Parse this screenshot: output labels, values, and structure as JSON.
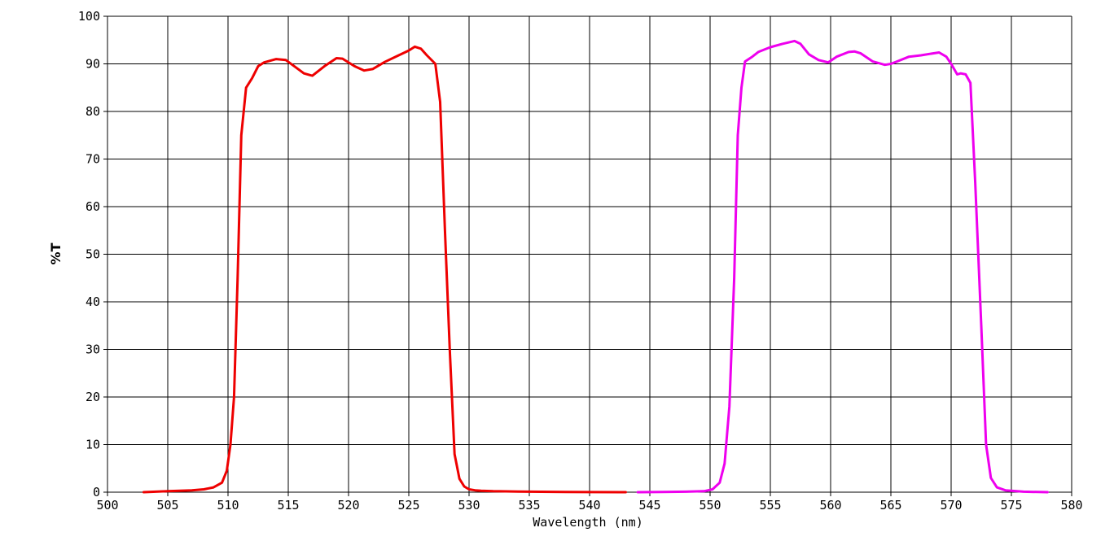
{
  "chart_data": {
    "type": "line",
    "xlabel": "Wavelength (nm)",
    "ylabel": "%T",
    "xlim": [
      500,
      580
    ],
    "ylim": [
      0,
      100
    ],
    "xticks": [
      500,
      505,
      510,
      515,
      520,
      525,
      530,
      535,
      540,
      545,
      550,
      555,
      560,
      565,
      570,
      575,
      580
    ],
    "yticks": [
      0,
      10,
      20,
      30,
      40,
      50,
      60,
      70,
      80,
      90,
      100
    ],
    "grid": true,
    "series": [
      {
        "color": "#ee0000",
        "x": [
          503,
          505,
          507,
          508,
          508.8,
          509.5,
          509.9,
          510.2,
          510.5,
          510.8,
          511.1,
          511.5,
          512,
          512.5,
          513,
          514,
          514.8,
          515.5,
          516.3,
          517,
          518,
          519,
          519.5,
          520.5,
          521.3,
          522,
          523,
          524,
          525,
          525.5,
          526,
          526.5,
          527.2,
          527.6,
          528,
          528.4,
          528.8,
          529.2,
          529.6,
          530,
          530.5,
          531,
          532,
          535,
          538,
          540,
          543
        ],
        "y": [
          0,
          0.2,
          0.4,
          0.6,
          1.0,
          2.0,
          4.5,
          10,
          20,
          45,
          75,
          85,
          87,
          89.5,
          90.3,
          91,
          90.8,
          89.5,
          88,
          87.5,
          89.5,
          91.2,
          91.1,
          89.5,
          88.6,
          88.9,
          90.4,
          91.6,
          92.8,
          93.6,
          93.2,
          91.8,
          90,
          82,
          55,
          30,
          8,
          2.8,
          1.2,
          0.6,
          0.4,
          0.3,
          0.2,
          0.1,
          0.05,
          0.02,
          0
        ]
      },
      {
        "color": "#ee00ee",
        "x": [
          544,
          546,
          548,
          549.5,
          550.2,
          550.8,
          551.2,
          551.6,
          552,
          552.3,
          552.6,
          552.9,
          553.5,
          554,
          555,
          556,
          556.5,
          557,
          557.5,
          558.2,
          559,
          559.8,
          560.5,
          561.5,
          562,
          562.5,
          563.5,
          564.5,
          565,
          565.5,
          566.5,
          567.5,
          568.5,
          569,
          569.6,
          570,
          570.5,
          570.8,
          571.2,
          571.6,
          572,
          572.5,
          572.9,
          573.3,
          573.8,
          574.5,
          576,
          578
        ],
        "y": [
          0,
          0.05,
          0.1,
          0.2,
          0.6,
          2,
          6,
          18,
          45,
          75,
          85,
          90.5,
          91.5,
          92.5,
          93.5,
          94.2,
          94.5,
          94.8,
          94.2,
          92,
          90.8,
          90.3,
          91.5,
          92.5,
          92.6,
          92.2,
          90.5,
          89.8,
          90,
          90.5,
          91.5,
          91.8,
          92.2,
          92.4,
          91.5,
          90,
          87.8,
          88,
          87.8,
          86,
          65,
          35,
          10,
          3,
          1,
          0.4,
          0.1,
          0
        ]
      }
    ]
  }
}
